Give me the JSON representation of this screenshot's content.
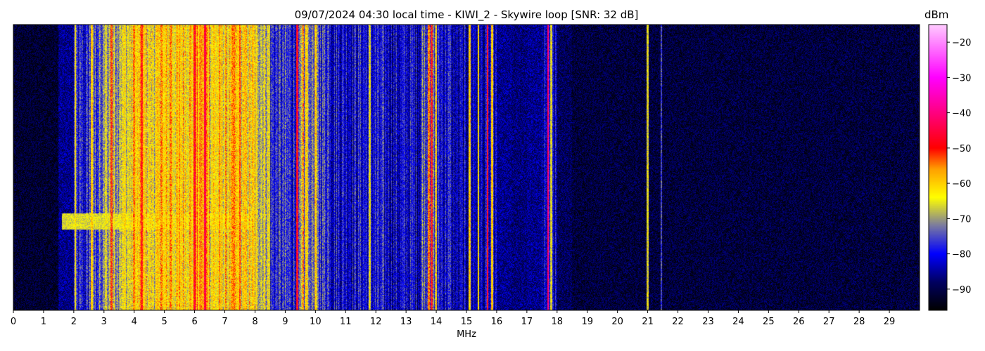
{
  "chart_data": {
    "type": "heatmap",
    "title": "09/07/2024 04:30 local time - KIWI_2 - Skywire loop [SNR: 32 dB]",
    "xlabel": "MHz",
    "ylabel": "",
    "xlim": [
      0,
      30
    ],
    "xticks": [
      "0",
      "1",
      "2",
      "3",
      "4",
      "5",
      "6",
      "7",
      "8",
      "9",
      "10",
      "11",
      "12",
      "13",
      "14",
      "15",
      "16",
      "17",
      "18",
      "19",
      "20",
      "21",
      "22",
      "23",
      "24",
      "25",
      "26",
      "27",
      "28",
      "29"
    ],
    "colorbar": {
      "label": "dBm",
      "range": [
        -96,
        -15
      ],
      "ticks": [
        -20,
        -30,
        -40,
        -50,
        -60,
        -70,
        -80,
        -90
      ],
      "tick_labels": [
        "−20",
        "−30",
        "−40",
        "−50",
        "−60",
        "−70",
        "−80",
        "−90"
      ],
      "colormap": [
        [
          -96,
          "#000000"
        ],
        [
          -88,
          "#000060"
        ],
        [
          -80,
          "#0000ff"
        ],
        [
          -72,
          "#7a7aa0"
        ],
        [
          -64,
          "#ffff00"
        ],
        [
          -56,
          "#ffa000"
        ],
        [
          -50,
          "#ff0000"
        ],
        [
          -40,
          "#ff0080"
        ],
        [
          -30,
          "#ff00ff"
        ],
        [
          -15,
          "#ffccff"
        ]
      ]
    },
    "band_profile_step_mhz": 0.5,
    "band_profile_dbm": [
      -92,
      -92,
      -92,
      -86,
      -80,
      -75,
      -68,
      -65,
      -63,
      -64,
      -62,
      -60,
      -58,
      -62,
      -62,
      -63,
      -66,
      -78,
      -78,
      -72,
      -76,
      -80,
      -80,
      -80,
      -81,
      -82,
      -81,
      -74,
      -80,
      -84,
      -82,
      -84,
      -86,
      -87,
      -86,
      -84,
      -89,
      -91,
      -91,
      -91,
      -91,
      -91,
      -91,
      -91,
      -91,
      -91,
      -91,
      -91,
      -91,
      -91,
      -91,
      -91,
      -91,
      -91,
      -91,
      -91,
      -91,
      -91,
      -91,
      -91
    ],
    "carriers": [
      {
        "mhz": 2.05,
        "dbm": -62
      },
      {
        "mhz": 2.6,
        "dbm": -60
      },
      {
        "mhz": 3.25,
        "dbm": -52
      },
      {
        "mhz": 4.0,
        "dbm": -55
      },
      {
        "mhz": 4.25,
        "dbm": -50
      },
      {
        "mhz": 4.9,
        "dbm": -55
      },
      {
        "mhz": 5.2,
        "dbm": -55
      },
      {
        "mhz": 6.0,
        "dbm": -48
      },
      {
        "mhz": 6.35,
        "dbm": -45
      },
      {
        "mhz": 7.3,
        "dbm": -55
      },
      {
        "mhz": 7.5,
        "dbm": -52
      },
      {
        "mhz": 9.4,
        "dbm": -48
      },
      {
        "mhz": 9.6,
        "dbm": -55
      },
      {
        "mhz": 9.7,
        "dbm": -60
      },
      {
        "mhz": 10.0,
        "dbm": -60
      },
      {
        "mhz": 11.8,
        "dbm": -65
      },
      {
        "mhz": 13.75,
        "dbm": -55
      },
      {
        "mhz": 13.85,
        "dbm": -50
      },
      {
        "mhz": 14.0,
        "dbm": -60
      },
      {
        "mhz": 15.1,
        "dbm": -60
      },
      {
        "mhz": 15.4,
        "dbm": -62
      },
      {
        "mhz": 15.7,
        "dbm": -48
      },
      {
        "mhz": 15.85,
        "dbm": -60
      },
      {
        "mhz": 17.7,
        "dbm": -40
      },
      {
        "mhz": 17.8,
        "dbm": -65
      },
      {
        "mhz": 21.0,
        "dbm": -65
      },
      {
        "mhz": 21.45,
        "dbm": -75
      }
    ],
    "grid": false
  }
}
